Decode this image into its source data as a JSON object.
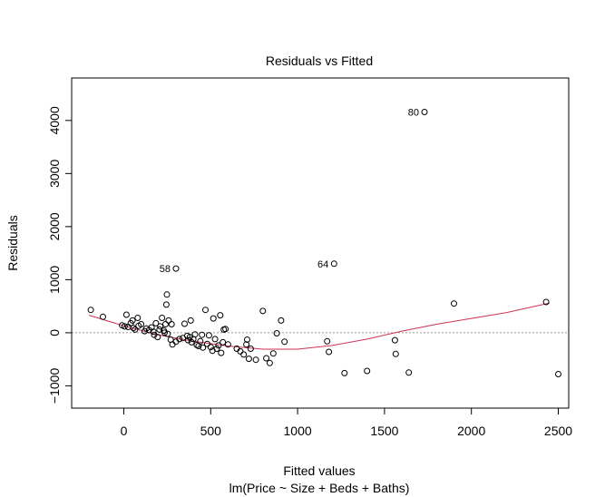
{
  "chart_data": {
    "type": "scatter",
    "title": "Residuals vs Fitted",
    "xlabel": "Fitted values",
    "subtitle": "lm(Price ~ Size + Beds + Baths)",
    "ylabel": "Residuals",
    "xlim": [
      -300,
      2560
    ],
    "ylim": [
      -1420,
      4800
    ],
    "xticks": [
      0,
      500,
      1000,
      1500,
      2000,
      2500
    ],
    "yticks": [
      -1000,
      0,
      1000,
      2000,
      3000,
      4000
    ],
    "reference_line": {
      "y": 0,
      "style": "dotted",
      "color": "#999999"
    },
    "smoother": {
      "color": "#cc3355",
      "x": [
        -200,
        0,
        200,
        400,
        600,
        800,
        1000,
        1200,
        1400,
        1600,
        1800,
        2000,
        2200,
        2450
      ],
      "y": [
        330,
        130,
        -40,
        -160,
        -250,
        -310,
        -310,
        -240,
        -120,
        30,
        160,
        270,
        380,
        560
      ]
    },
    "points": [
      {
        "x": -190,
        "y": 430
      },
      {
        "x": -120,
        "y": 300
      },
      {
        "x": -10,
        "y": 140
      },
      {
        "x": 5,
        "y": 120
      },
      {
        "x": 15,
        "y": 340
      },
      {
        "x": 25,
        "y": 110
      },
      {
        "x": 40,
        "y": 180
      },
      {
        "x": 50,
        "y": 230
      },
      {
        "x": 55,
        "y": 90
      },
      {
        "x": 65,
        "y": 60
      },
      {
        "x": 80,
        "y": 280
      },
      {
        "x": 85,
        "y": 130
      },
      {
        "x": 100,
        "y": 160
      },
      {
        "x": 120,
        "y": 30
      },
      {
        "x": 130,
        "y": 80
      },
      {
        "x": 145,
        "y": 50
      },
      {
        "x": 160,
        "y": 100
      },
      {
        "x": 170,
        "y": 20
      },
      {
        "x": 175,
        "y": -40
      },
      {
        "x": 185,
        "y": 180
      },
      {
        "x": 195,
        "y": -80
      },
      {
        "x": 205,
        "y": 60
      },
      {
        "x": 210,
        "y": 120
      },
      {
        "x": 220,
        "y": 280
      },
      {
        "x": 230,
        "y": 40
      },
      {
        "x": 235,
        "y": 0
      },
      {
        "x": 240,
        "y": 160
      },
      {
        "x": 245,
        "y": 530
      },
      {
        "x": 248,
        "y": 720
      },
      {
        "x": 252,
        "y": -20
      },
      {
        "x": 258,
        "y": 230
      },
      {
        "x": 270,
        "y": -130
      },
      {
        "x": 275,
        "y": 160
      },
      {
        "x": 280,
        "y": -220
      },
      {
        "x": 300,
        "y": -170
      },
      {
        "x": 320,
        "y": -120
      },
      {
        "x": 340,
        "y": -100
      },
      {
        "x": 350,
        "y": 170
      },
      {
        "x": 365,
        "y": -60
      },
      {
        "x": 370,
        "y": -140
      },
      {
        "x": 380,
        "y": -80
      },
      {
        "x": 385,
        "y": 230
      },
      {
        "x": 390,
        "y": -180
      },
      {
        "x": 400,
        "y": -120
      },
      {
        "x": 410,
        "y": -30
      },
      {
        "x": 420,
        "y": -230
      },
      {
        "x": 430,
        "y": -250
      },
      {
        "x": 440,
        "y": -160
      },
      {
        "x": 450,
        "y": -40
      },
      {
        "x": 455,
        "y": -280
      },
      {
        "x": 470,
        "y": 430
      },
      {
        "x": 480,
        "y": -210
      },
      {
        "x": 490,
        "y": -50
      },
      {
        "x": 500,
        "y": -270
      },
      {
        "x": 510,
        "y": -340
      },
      {
        "x": 515,
        "y": 270
      },
      {
        "x": 525,
        "y": -120
      },
      {
        "x": 535,
        "y": -300
      },
      {
        "x": 545,
        "y": -240
      },
      {
        "x": 555,
        "y": 330
      },
      {
        "x": 560,
        "y": -380
      },
      {
        "x": 570,
        "y": -180
      },
      {
        "x": 575,
        "y": 60
      },
      {
        "x": 585,
        "y": 70
      },
      {
        "x": 600,
        "y": -220
      },
      {
        "x": 650,
        "y": -300
      },
      {
        "x": 670,
        "y": -350
      },
      {
        "x": 690,
        "y": -410
      },
      {
        "x": 705,
        "y": -220
      },
      {
        "x": 710,
        "y": -130
      },
      {
        "x": 720,
        "y": -490
      },
      {
        "x": 730,
        "y": -300
      },
      {
        "x": 760,
        "y": -510
      },
      {
        "x": 800,
        "y": 410
      },
      {
        "x": 820,
        "y": -480
      },
      {
        "x": 840,
        "y": -570
      },
      {
        "x": 860,
        "y": -390
      },
      {
        "x": 880,
        "y": -10
      },
      {
        "x": 905,
        "y": 230
      },
      {
        "x": 925,
        "y": -170
      },
      {
        "x": 1170,
        "y": -160
      },
      {
        "x": 1180,
        "y": -360
      },
      {
        "x": 1270,
        "y": -760
      },
      {
        "x": 1400,
        "y": -720
      },
      {
        "x": 1560,
        "y": -140
      },
      {
        "x": 1565,
        "y": -400
      },
      {
        "x": 1640,
        "y": -750
      },
      {
        "x": 1900,
        "y": 550
      },
      {
        "x": 2430,
        "y": 580
      },
      {
        "x": 2500,
        "y": -780
      },
      {
        "x": 300,
        "y": 1210,
        "label": "58"
      },
      {
        "x": 1210,
        "y": 1300,
        "label": "64"
      },
      {
        "x": 1730,
        "y": 4160,
        "label": "80"
      }
    ]
  }
}
